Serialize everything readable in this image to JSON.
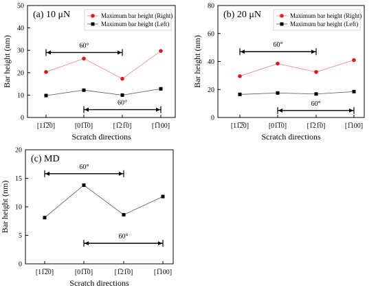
{
  "chart_data": [
    {
      "type": "line",
      "panel_label": "(a) 10 μN",
      "xlabel": "Scratch directions",
      "ylabel": "Bar height (nm)",
      "categories": [
        "[11̅2̅0]",
        "[01̅1̅0]",
        "[1̅21̅0]",
        "[1̅100]"
      ],
      "ylim": [
        0,
        50
      ],
      "yticks": [
        0,
        10,
        20,
        30,
        40,
        50
      ],
      "legend": "top-right",
      "series": [
        {
          "name": "Maximum bar height (Right)",
          "color": "#e8141c",
          "marker": "circle",
          "values": [
            20.3,
            26.3,
            17.3,
            29.7
          ]
        },
        {
          "name": "Maximum bar height (Left)",
          "color": "#000000",
          "marker": "square",
          "values": [
            9.8,
            12.2,
            10.0,
            12.8
          ]
        }
      ],
      "annotations": [
        {
          "text": "60°",
          "from_category": 0,
          "to_category": 2,
          "y": 29
        },
        {
          "text": "60°",
          "from_category": 1,
          "to_category": 3,
          "y": 3.5
        }
      ]
    },
    {
      "type": "line",
      "panel_label": "(b) 20 μN",
      "xlabel": "Scratch directions",
      "ylabel": "Bar height (nm)",
      "categories": [
        "[11̅2̅0]",
        "[01̅1̅0]",
        "[1̅21̅0]",
        "[1̅100]"
      ],
      "ylim": [
        0,
        80
      ],
      "yticks": [
        0,
        20,
        40,
        60,
        80
      ],
      "legend": "top-right",
      "series": [
        {
          "name": "Maximum bar height (Right)",
          "color": "#e8141c",
          "marker": "circle",
          "values": [
            29.5,
            38.5,
            32.5,
            41.0
          ]
        },
        {
          "name": "Maximum bar height (Left)",
          "color": "#000000",
          "marker": "square",
          "values": [
            16.5,
            17.5,
            16.8,
            18.5
          ]
        }
      ],
      "annotations": [
        {
          "text": "60°",
          "from_category": 0,
          "to_category": 2,
          "y": 47
        },
        {
          "text": "60°",
          "from_category": 1,
          "to_category": 3,
          "y": 5
        }
      ]
    },
    {
      "type": "line",
      "panel_label": "(c) MD",
      "xlabel": "Scratch directions",
      "ylabel": "Bar height (nm)",
      "categories": [
        "[11̅2̅0]",
        "[01̅1̅0]",
        "[1̅21̅0]",
        "[1̅100]"
      ],
      "ylim": [
        0,
        20
      ],
      "yticks": [
        0,
        5,
        10,
        15,
        20
      ],
      "series": [
        {
          "color": "#000000",
          "marker": "square",
          "values": [
            8.1,
            13.8,
            8.6,
            11.8
          ]
        }
      ],
      "annotations": [
        {
          "text": "60°",
          "from_category": 0,
          "to_category": 2,
          "y": 15.8
        },
        {
          "text": "60°",
          "from_category": 1,
          "to_category": 3,
          "y": 3.6
        }
      ]
    }
  ]
}
